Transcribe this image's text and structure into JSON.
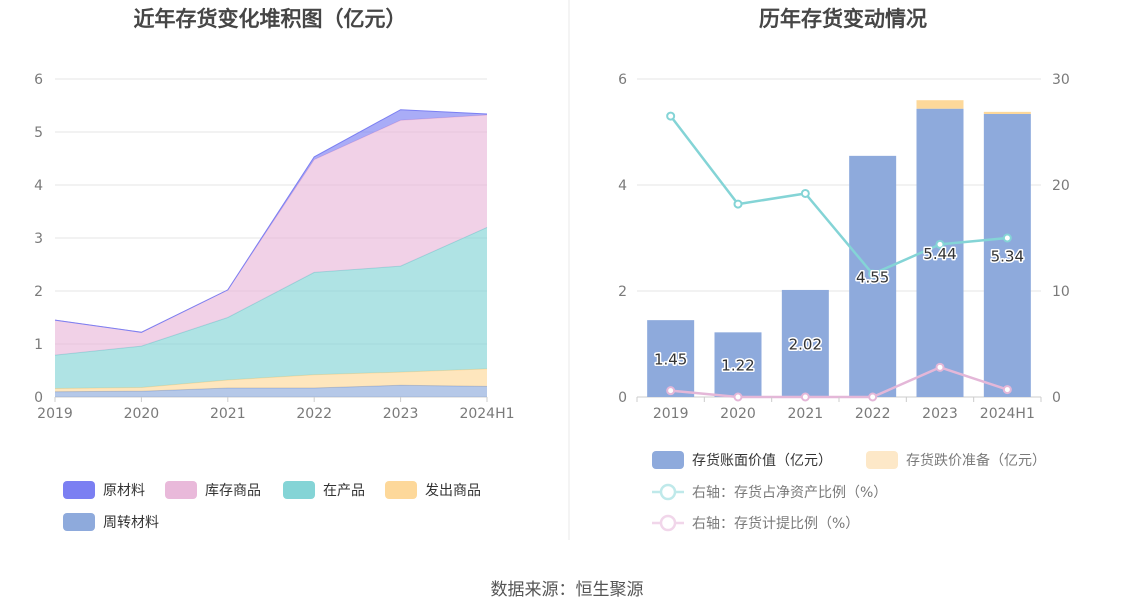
{
  "chart_data": [
    {
      "type": "area",
      "stacked": true,
      "title": "近年存货变化堆积图（亿元）",
      "x": [
        "2019",
        "2020",
        "2021",
        "2022",
        "2023",
        "2024H1"
      ],
      "ylim": [
        0,
        6
      ],
      "yticks": [
        "0",
        "1",
        "2",
        "3",
        "4",
        "5",
        "6"
      ],
      "grid": true,
      "legend_position": "bottom-left",
      "series": [
        {
          "name": "周转材料",
          "color": "#8eaadc",
          "values": [
            0.1,
            0.11,
            0.17,
            0.17,
            0.22,
            0.2
          ]
        },
        {
          "name": "发出商品",
          "color": "#fdd89a",
          "values": [
            0.06,
            0.07,
            0.15,
            0.25,
            0.25,
            0.33
          ]
        },
        {
          "name": "在产品",
          "color": "#84d4d6",
          "values": [
            0.63,
            0.78,
            1.18,
            1.93,
            2.0,
            2.67
          ]
        },
        {
          "name": "库存商品",
          "color": "#e9b9da",
          "values": [
            0.66,
            0.26,
            0.52,
            2.13,
            2.75,
            2.12
          ]
        },
        {
          "name": "原材料",
          "color": "#7b7ff2",
          "values": [
            0.0,
            0.0,
            0.0,
            0.05,
            0.2,
            0.02
          ]
        }
      ],
      "legend_order": [
        "原材料",
        "库存商品",
        "在产品",
        "发出商品",
        "周转材料"
      ]
    },
    {
      "type": "bar",
      "title": "历年存货变动情况",
      "categories": [
        "2019",
        "2020",
        "2021",
        "2022",
        "2023",
        "2024H1"
      ],
      "ylim": [
        0,
        6
      ],
      "yticks": [
        "0",
        "2",
        "4",
        "6"
      ],
      "y2lim": [
        0,
        30
      ],
      "y2ticks": [
        "0",
        "10",
        "20",
        "30"
      ],
      "grid": true,
      "legend_position": "bottom",
      "series": [
        {
          "name": "存货账面价值（亿元）",
          "kind": "bar",
          "color": "#8eaadc",
          "values": [
            1.45,
            1.22,
            2.02,
            4.55,
            5.44,
            5.34
          ],
          "labels": [
            "1.45",
            "1.22",
            "2.02",
            "4.55",
            "5.44",
            "5.34"
          ]
        },
        {
          "name": "存货跌价准备（亿元）",
          "kind": "bar-stack",
          "color": "#fdd89a",
          "values": [
            0.0,
            0.0,
            0.0,
            0.0,
            0.16,
            0.04
          ]
        },
        {
          "name": "右轴：存货占净资产比例（%）",
          "kind": "line",
          "axis": "right",
          "color": "#84d4d6",
          "values": [
            26.5,
            18.2,
            19.2,
            11.6,
            14.4,
            15.0
          ]
        },
        {
          "name": "右轴：存货计提比例（%）",
          "kind": "line",
          "axis": "right",
          "color": "#e4b7d8",
          "values": [
            0.6,
            0.0,
            0.0,
            0.0,
            2.8,
            0.7
          ]
        }
      ]
    }
  ],
  "footer": {
    "source": "数据来源：恒生聚源"
  }
}
